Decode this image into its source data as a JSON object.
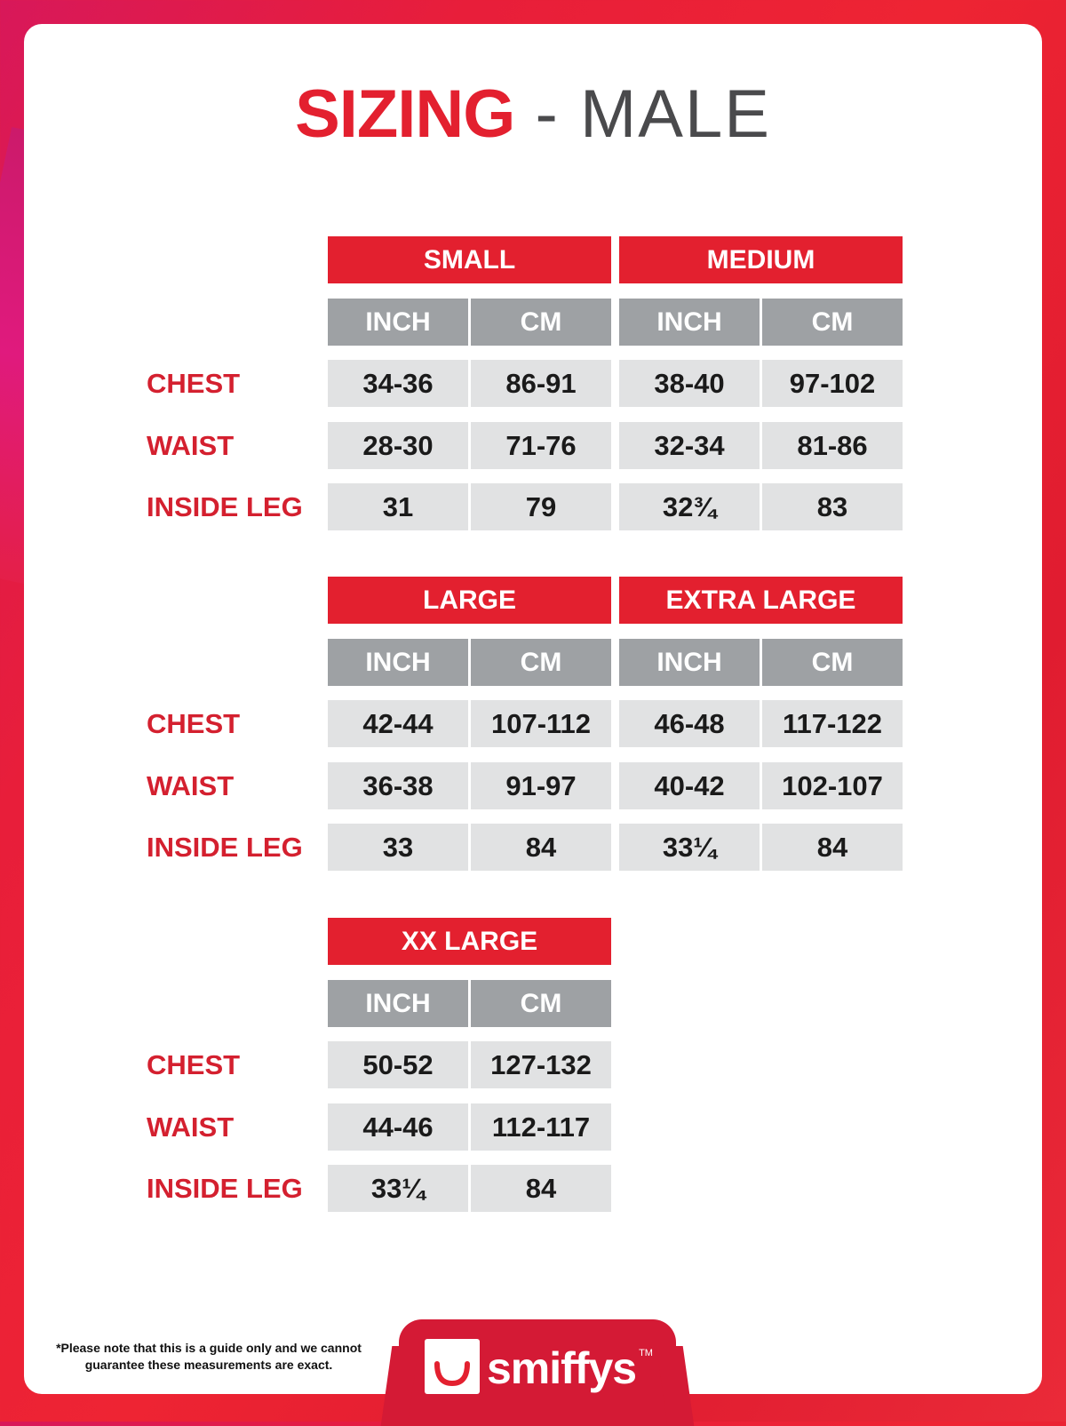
{
  "title": {
    "bold": "SIZING",
    "rest": " - MALE"
  },
  "row_labels": [
    "CHEST",
    "WAIST",
    "INSIDE LEG"
  ],
  "sections": [
    {
      "sizes": [
        {
          "name": "SMALL",
          "units": [
            "INCH",
            "CM"
          ],
          "values": [
            [
              "34-36",
              "86-91"
            ],
            [
              "28-30",
              "71-76"
            ],
            [
              "31",
              "79"
            ]
          ]
        },
        {
          "name": "MEDIUM",
          "units": [
            "INCH",
            "CM"
          ],
          "values": [
            [
              "38-40",
              "97-102"
            ],
            [
              "32-34",
              "81-86"
            ],
            [
              "32¾",
              "83"
            ]
          ]
        }
      ]
    },
    {
      "sizes": [
        {
          "name": "LARGE",
          "units": [
            "INCH",
            "CM"
          ],
          "values": [
            [
              "42-44",
              "107-112"
            ],
            [
              "36-38",
              "91-97"
            ],
            [
              "33",
              "84"
            ]
          ]
        },
        {
          "name": "EXTRA LARGE",
          "units": [
            "INCH",
            "CM"
          ],
          "values": [
            [
              "46-48",
              "117-122"
            ],
            [
              "40-42",
              "102-107"
            ],
            [
              "33¼",
              "84"
            ]
          ]
        }
      ]
    },
    {
      "sizes": [
        {
          "name": "XX LARGE",
          "units": [
            "INCH",
            "CM"
          ],
          "values": [
            [
              "50-52",
              "127-132"
            ],
            [
              "44-46",
              "112-117"
            ],
            [
              "33¼",
              "84"
            ]
          ]
        }
      ]
    }
  ],
  "footer": {
    "note_line1": "*Please note that this is a guide only and we cannot",
    "note_line2": "guarantee these measurements are exact.",
    "brand": "smiffys",
    "trademark": "TM"
  },
  "colors": {
    "accent": "#e3202f",
    "unit_header": "#9ea1a4",
    "cell": "#e1e2e3"
  }
}
